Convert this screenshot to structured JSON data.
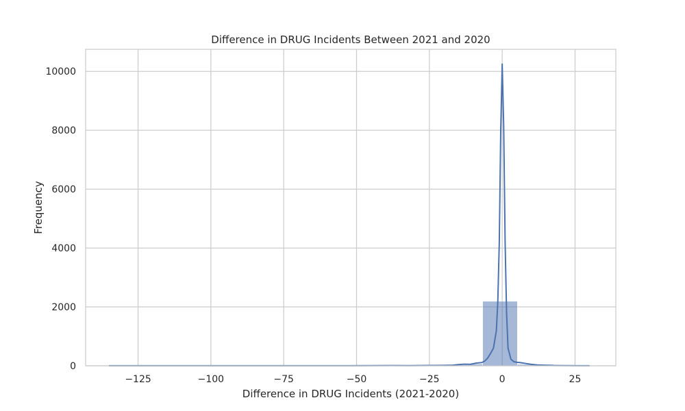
{
  "chart_data": {
    "type": "bar",
    "title": "Difference in DRUG Incidents Between 2021 and 2020",
    "xlabel": "Difference in DRUG Incidents (2021-2020)",
    "ylabel": "Frequency",
    "xlim": [
      -143,
      39
    ],
    "ylim": [
      0,
      10750
    ],
    "grid": true,
    "x_ticks": [
      -125,
      -100,
      -75,
      -50,
      -25,
      0,
      25
    ],
    "x_tick_labels": [
      "−125",
      "−100",
      "−75",
      "−50",
      "−25",
      "0",
      "25"
    ],
    "y_ticks": [
      0,
      2000,
      4000,
      6000,
      8000,
      10000
    ],
    "y_tick_labels": [
      "0",
      "2000",
      "4000",
      "6000",
      "8000",
      "10000"
    ],
    "bar_color": "#4c72b0",
    "histogram": {
      "bin_edges": [
        -135,
        -122.6,
        -110.2,
        -97.8,
        -85.4,
        -73.0,
        -60.6,
        -48.2,
        -35.8,
        -23.4,
        -11.0,
        -6.7,
        5.2,
        17.6,
        30.0,
        31.5
      ],
      "counts": [
        18,
        8,
        6,
        5,
        4,
        12,
        6,
        10,
        22,
        30,
        60,
        2190,
        48,
        16,
        14
      ]
    },
    "kde": {
      "x": [
        -135,
        -125,
        -110,
        -100,
        -90,
        -80,
        -73,
        -65,
        -55,
        -45,
        -38,
        -32,
        -25,
        -20,
        -17,
        -15,
        -13,
        -11,
        -9,
        -7,
        -6,
        -5,
        -4,
        -3,
        -2,
        -1.5,
        -1,
        -0.5,
        0,
        0.5,
        1,
        1.5,
        2,
        3,
        4,
        5,
        6,
        8,
        10,
        12,
        15,
        18,
        22,
        26,
        30
      ],
      "y": [
        2,
        2,
        2,
        2,
        2,
        3,
        4,
        3,
        3,
        5,
        8,
        6,
        12,
        14,
        20,
        40,
        55,
        50,
        90,
        110,
        160,
        260,
        420,
        600,
        1200,
        2200,
        4200,
        8000,
        10250,
        8200,
        4200,
        1800,
        600,
        220,
        140,
        120,
        110,
        80,
        50,
        30,
        18,
        10,
        6,
        4,
        2
      ]
    }
  }
}
